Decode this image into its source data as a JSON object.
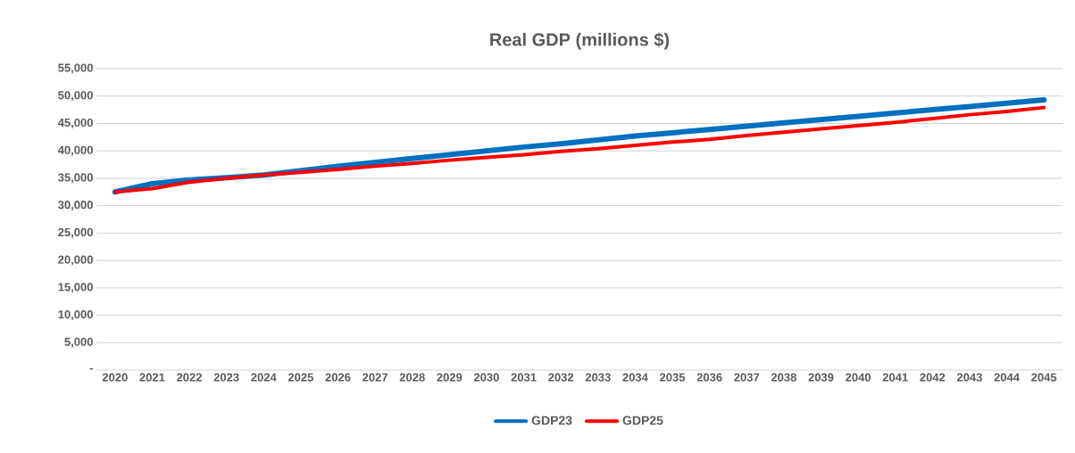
{
  "chart_data": {
    "type": "line",
    "title": "Real GDP (millions $)",
    "categories": [
      "2020",
      "2021",
      "2022",
      "2023",
      "2024",
      "2025",
      "2026",
      "2027",
      "2028",
      "2029",
      "2030",
      "2031",
      "2032",
      "2033",
      "2034",
      "2035",
      "2036",
      "2037",
      "2038",
      "2039",
      "2040",
      "2041",
      "2042",
      "2043",
      "2044",
      "2045"
    ],
    "series": [
      {
        "name": "GDP23",
        "color": "#0070c0",
        "values": [
          32500,
          34000,
          34700,
          35100,
          35600,
          36400,
          37200,
          37900,
          38600,
          39300,
          40000,
          40700,
          41300,
          42000,
          42700,
          43300,
          43900,
          44500,
          45100,
          45700,
          46300,
          46900,
          47500,
          48100,
          48700,
          49300
        ]
      },
      {
        "name": "GDP25",
        "color": "#ff0000",
        "values": [
          32500,
          33100,
          34300,
          35000,
          35600,
          36100,
          36600,
          37200,
          37700,
          38300,
          38800,
          39300,
          39900,
          40400,
          41000,
          41600,
          42100,
          42800,
          43400,
          44000,
          44600,
          45200,
          45900,
          46600,
          47200,
          47900
        ]
      }
    ],
    "ylim": [
      0,
      55000
    ],
    "yticks": [
      {
        "value": 0,
        "label": "-"
      },
      {
        "value": 5000,
        "label": "5,000"
      },
      {
        "value": 10000,
        "label": "10,000"
      },
      {
        "value": 15000,
        "label": "15,000"
      },
      {
        "value": 20000,
        "label": "20,000"
      },
      {
        "value": 25000,
        "label": "25,000"
      },
      {
        "value": 30000,
        "label": "30,000"
      },
      {
        "value": 35000,
        "label": "35,000"
      },
      {
        "value": 40000,
        "label": "40,000"
      },
      {
        "value": 45000,
        "label": "45,000"
      },
      {
        "value": 50000,
        "label": "50,000"
      },
      {
        "value": 55000,
        "label": "55,000"
      }
    ],
    "grid": "y",
    "legend": "bottom",
    "marker": "none",
    "line_style": "solid"
  }
}
